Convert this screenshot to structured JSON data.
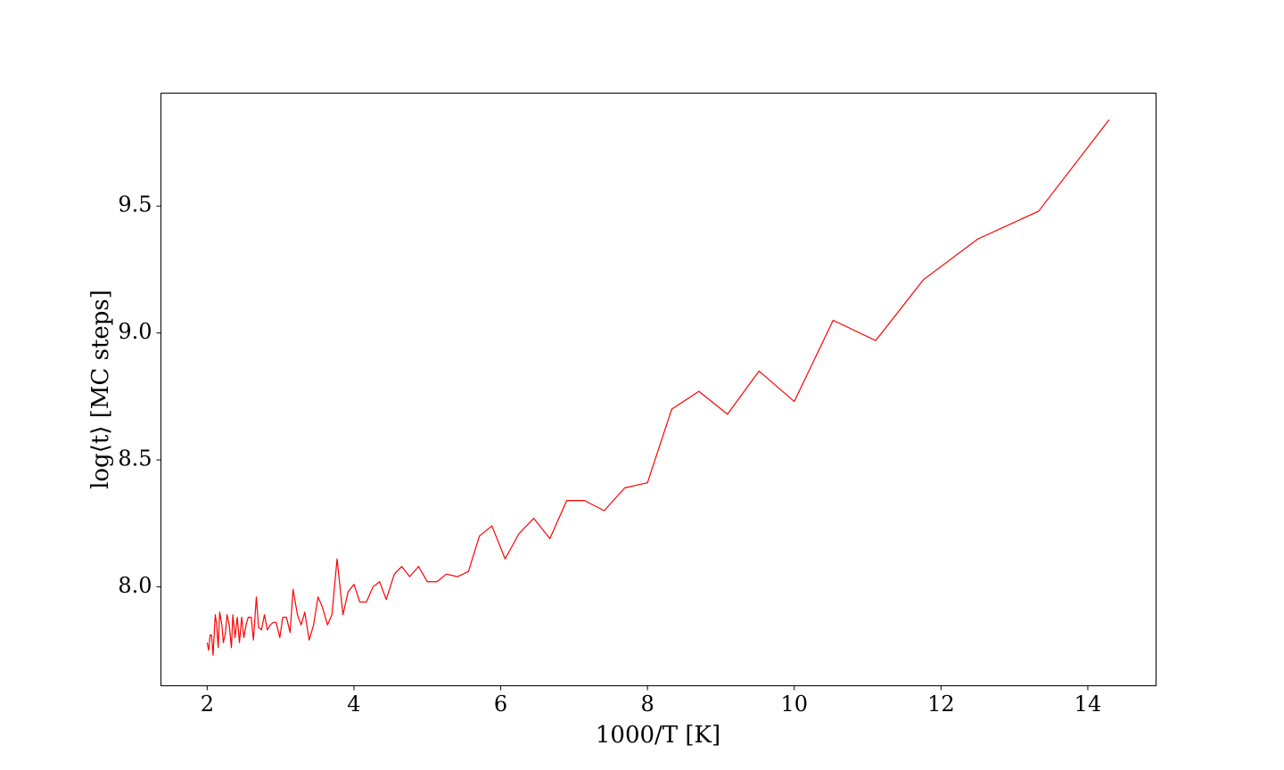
{
  "chart_data": {
    "type": "line",
    "xlabel": "1000/T [K]",
    "ylabel": "log⟨t⟩ [MC steps]",
    "x": [
      2.0,
      2.02,
      2.04,
      2.06,
      2.08,
      2.11,
      2.13,
      2.15,
      2.17,
      2.2,
      2.22,
      2.25,
      2.27,
      2.3,
      2.33,
      2.35,
      2.38,
      2.41,
      2.44,
      2.47,
      2.5,
      2.53,
      2.56,
      2.6,
      2.63,
      2.67,
      2.7,
      2.74,
      2.78,
      2.82,
      2.86,
      2.9,
      2.94,
      2.99,
      3.03,
      3.08,
      3.13,
      3.17,
      3.23,
      3.28,
      3.33,
      3.39,
      3.45,
      3.51,
      3.57,
      3.64,
      3.7,
      3.77,
      3.85,
      3.92,
      4.0,
      4.08,
      4.17,
      4.26,
      4.35,
      4.44,
      4.55,
      4.65,
      4.76,
      4.88,
      5.0,
      5.13,
      5.26,
      5.41,
      5.56,
      5.71,
      5.88,
      6.06,
      6.25,
      6.45,
      6.67,
      6.9,
      7.14,
      7.41,
      7.69,
      8.0,
      8.33,
      8.7,
      9.09,
      9.52,
      10.0,
      10.53,
      11.11,
      11.76,
      12.5,
      13.33,
      14.29
    ],
    "values": [
      7.78,
      7.75,
      7.81,
      7.81,
      7.73,
      7.89,
      7.85,
      7.76,
      7.9,
      7.85,
      7.78,
      7.82,
      7.89,
      7.85,
      7.76,
      7.89,
      7.8,
      7.88,
      7.78,
      7.88,
      7.8,
      7.85,
      7.88,
      7.88,
      7.79,
      7.96,
      7.84,
      7.83,
      7.89,
      7.83,
      7.85,
      7.86,
      7.86,
      7.8,
      7.88,
      7.88,
      7.82,
      7.99,
      7.89,
      7.85,
      7.9,
      7.79,
      7.85,
      7.96,
      7.92,
      7.85,
      7.89,
      8.11,
      7.89,
      7.98,
      8.01,
      7.94,
      7.94,
      8.0,
      8.02,
      7.95,
      8.05,
      8.08,
      8.04,
      8.08,
      8.02,
      8.02,
      8.05,
      8.04,
      8.06,
      8.2,
      8.24,
      8.11,
      8.21,
      8.27,
      8.19,
      8.34,
      8.34,
      8.3,
      8.39,
      8.41,
      8.7,
      8.77,
      8.68,
      8.85,
      8.73,
      9.05,
      8.97,
      9.21,
      9.37,
      9.48,
      9.84
    ],
    "color": "#ff0000",
    "xlim": [
      1.37,
      14.93
    ],
    "ylim": [
      7.61,
      9.945
    ],
    "xticks": [
      2,
      4,
      6,
      8,
      10,
      12,
      14
    ],
    "yticks": [
      {
        "value": 8,
        "label": "8.0"
      },
      8.5,
      {
        "value": 9,
        "label": "9.0"
      },
      9.5
    ],
    "grid": false
  }
}
